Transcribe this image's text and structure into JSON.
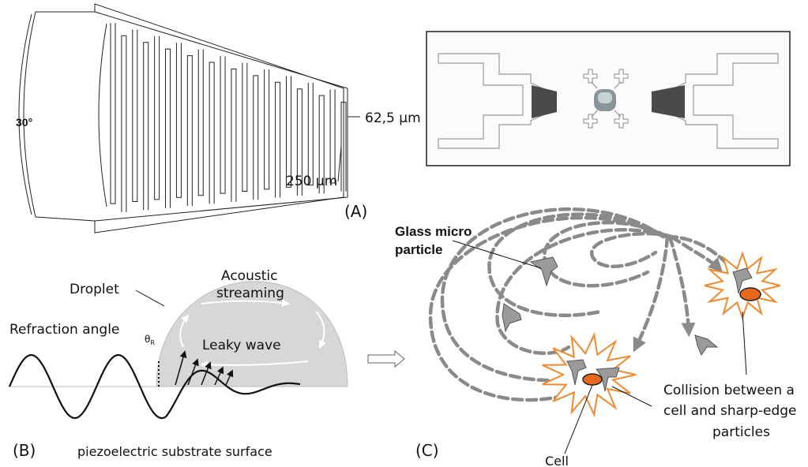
{
  "panel_a": {
    "label": "(A)",
    "angle_label": "30°",
    "gap_label": "62,5 µm",
    "width_label": "250 µm"
  },
  "panel_b": {
    "label": "(B)",
    "droplet_label": "Droplet",
    "streaming_label_1": "Acoustic",
    "streaming_label_2": "streaming",
    "leaky_wave_label": "Leaky wave",
    "refraction_label": "Refraction angle",
    "theta_label": "θ",
    "theta_sub": "R",
    "substrate_label": "piezoelectric substrate surface"
  },
  "panel_c": {
    "label": "(C)",
    "glass_label_1": "Glass micro",
    "glass_label_2": "particle",
    "collision_label_1": "Collision between a",
    "collision_label_2": "cell and sharp-edge",
    "collision_label_3": "particles",
    "cell_label": "Cell"
  },
  "colors": {
    "droplet": "#d7d7d7",
    "dashed_path": "#8a8a8a",
    "burst": "#f08a30",
    "cell": "#e8671c",
    "particle": "#9a9a9a"
  }
}
